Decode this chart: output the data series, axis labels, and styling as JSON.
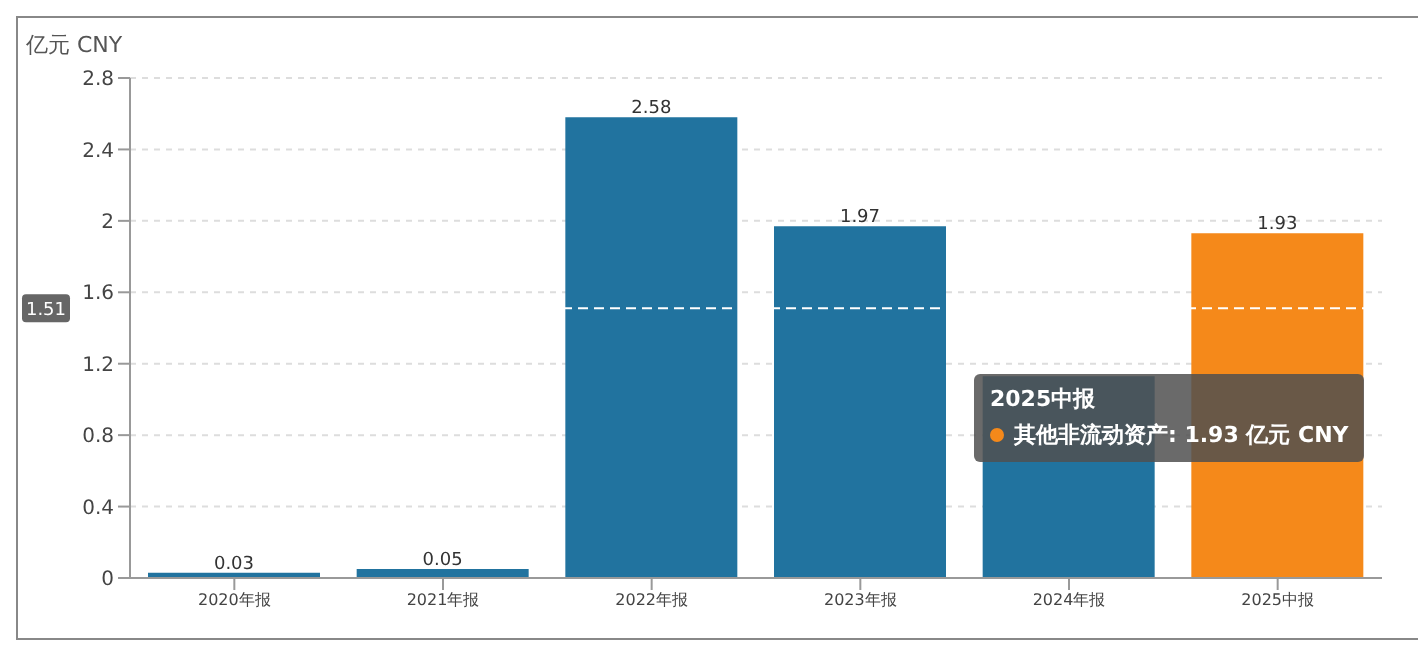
{
  "chart_data": {
    "type": "bar",
    "ylabel": "亿元 CNY",
    "categories": [
      "2020年报",
      "2021年报",
      "2022年报",
      "2023年报",
      "2024年报",
      "2025中报"
    ],
    "values": [
      0.03,
      0.05,
      2.58,
      1.97,
      1.13,
      1.93
    ],
    "colors": [
      "#21739f",
      "#21739f",
      "#21739f",
      "#21739f",
      "#21739f",
      "#f5891a"
    ],
    "value_labels": [
      "0.03",
      "0.05",
      "2.58",
      "1.97",
      null,
      "1.93"
    ],
    "ylim": [
      0,
      2.8
    ],
    "yticks": [
      0,
      0.4,
      0.8,
      1.2,
      1.6,
      2,
      2.4,
      2.8
    ],
    "grid": "y",
    "ref_lines": [
      {
        "axis": "y",
        "value": 1.51,
        "label": "1.51",
        "line_style": "dashed",
        "color": "#ffffff"
      }
    ],
    "annotations": [
      "2025中报",
      "其他非流动资产: 1.93 亿元 CNY"
    ]
  }
}
